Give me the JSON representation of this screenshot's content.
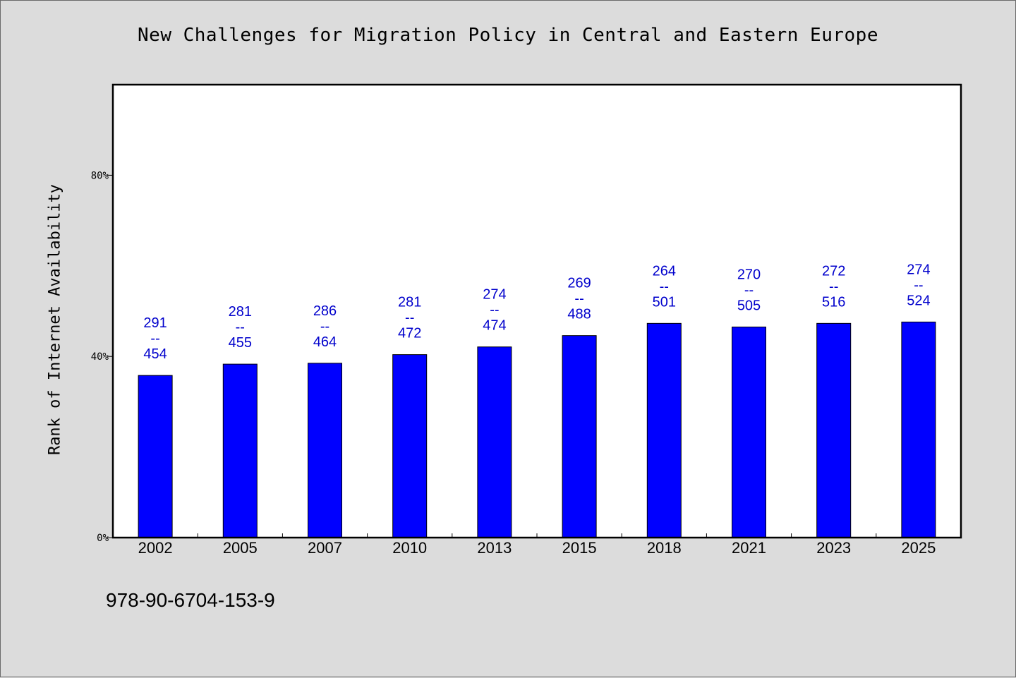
{
  "title": "New Challenges for Migration Policy in Central and Eastern Europe",
  "footer": "978-90-6704-153-9",
  "chart_data": {
    "type": "bar",
    "title": "New Challenges for Migration Policy in Central and Eastern Europe",
    "xlabel": "",
    "ylabel": "Rank of Internet Availability",
    "categories": [
      "2002",
      "2005",
      "2007",
      "2010",
      "2013",
      "2015",
      "2018",
      "2021",
      "2023",
      "2025"
    ],
    "values": [
      35.8,
      38.3,
      38.5,
      40.4,
      42.1,
      44.6,
      47.3,
      46.5,
      47.3,
      47.6
    ],
    "numerators": [
      "291",
      "281",
      "286",
      "281",
      "274",
      "269",
      "264",
      "270",
      "272",
      "274"
    ],
    "denominators": [
      "454",
      "455",
      "464",
      "472",
      "474",
      "488",
      "501",
      "505",
      "516",
      "524"
    ],
    "label_separator": "--",
    "yticks": [
      "0%",
      "40%",
      "80%"
    ],
    "ytick_values": [
      0,
      40,
      80
    ],
    "ylim": [
      0,
      100
    ],
    "bar_color": "#0000ff",
    "label_color": "#0000cc",
    "plot_background": "#ffffff",
    "figure_background": "#dcdcdc",
    "grid": false,
    "legend": "none"
  }
}
